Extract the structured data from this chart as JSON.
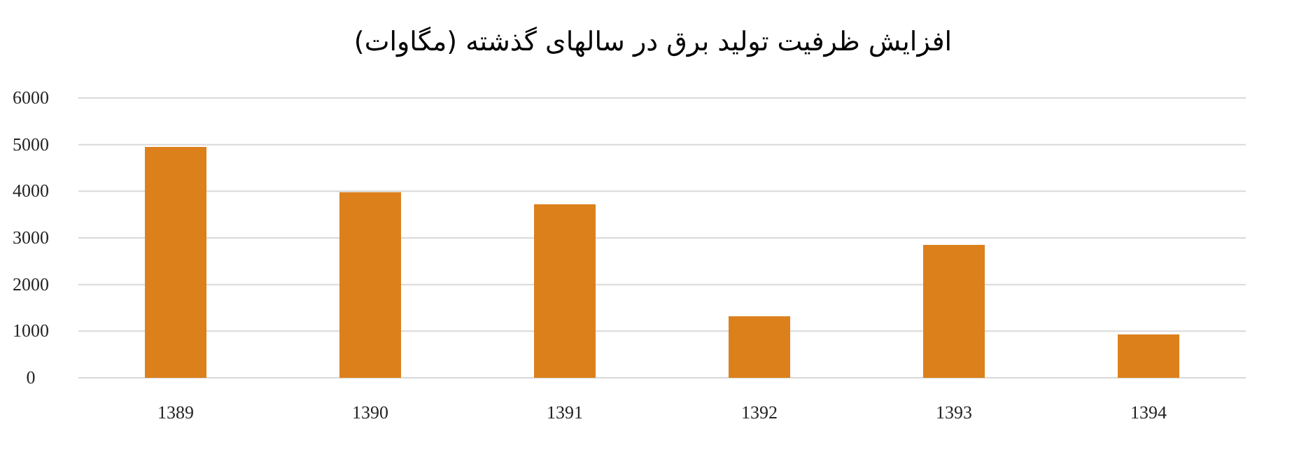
{
  "chart_data": {
    "type": "bar",
    "title": "افزایش ظرفیت تولید برق در سالهای گذشته (مگاوات)",
    "categories": [
      "1389",
      "1390",
      "1391",
      "1392",
      "1393",
      "1394"
    ],
    "values": [
      4950,
      3980,
      3720,
      1320,
      2850,
      930
    ],
    "color": "#dc801c",
    "ylim": [
      0,
      6000
    ],
    "yticks": [
      0,
      1000,
      2000,
      3000,
      4000,
      5000,
      6000
    ],
    "grid": "y"
  }
}
